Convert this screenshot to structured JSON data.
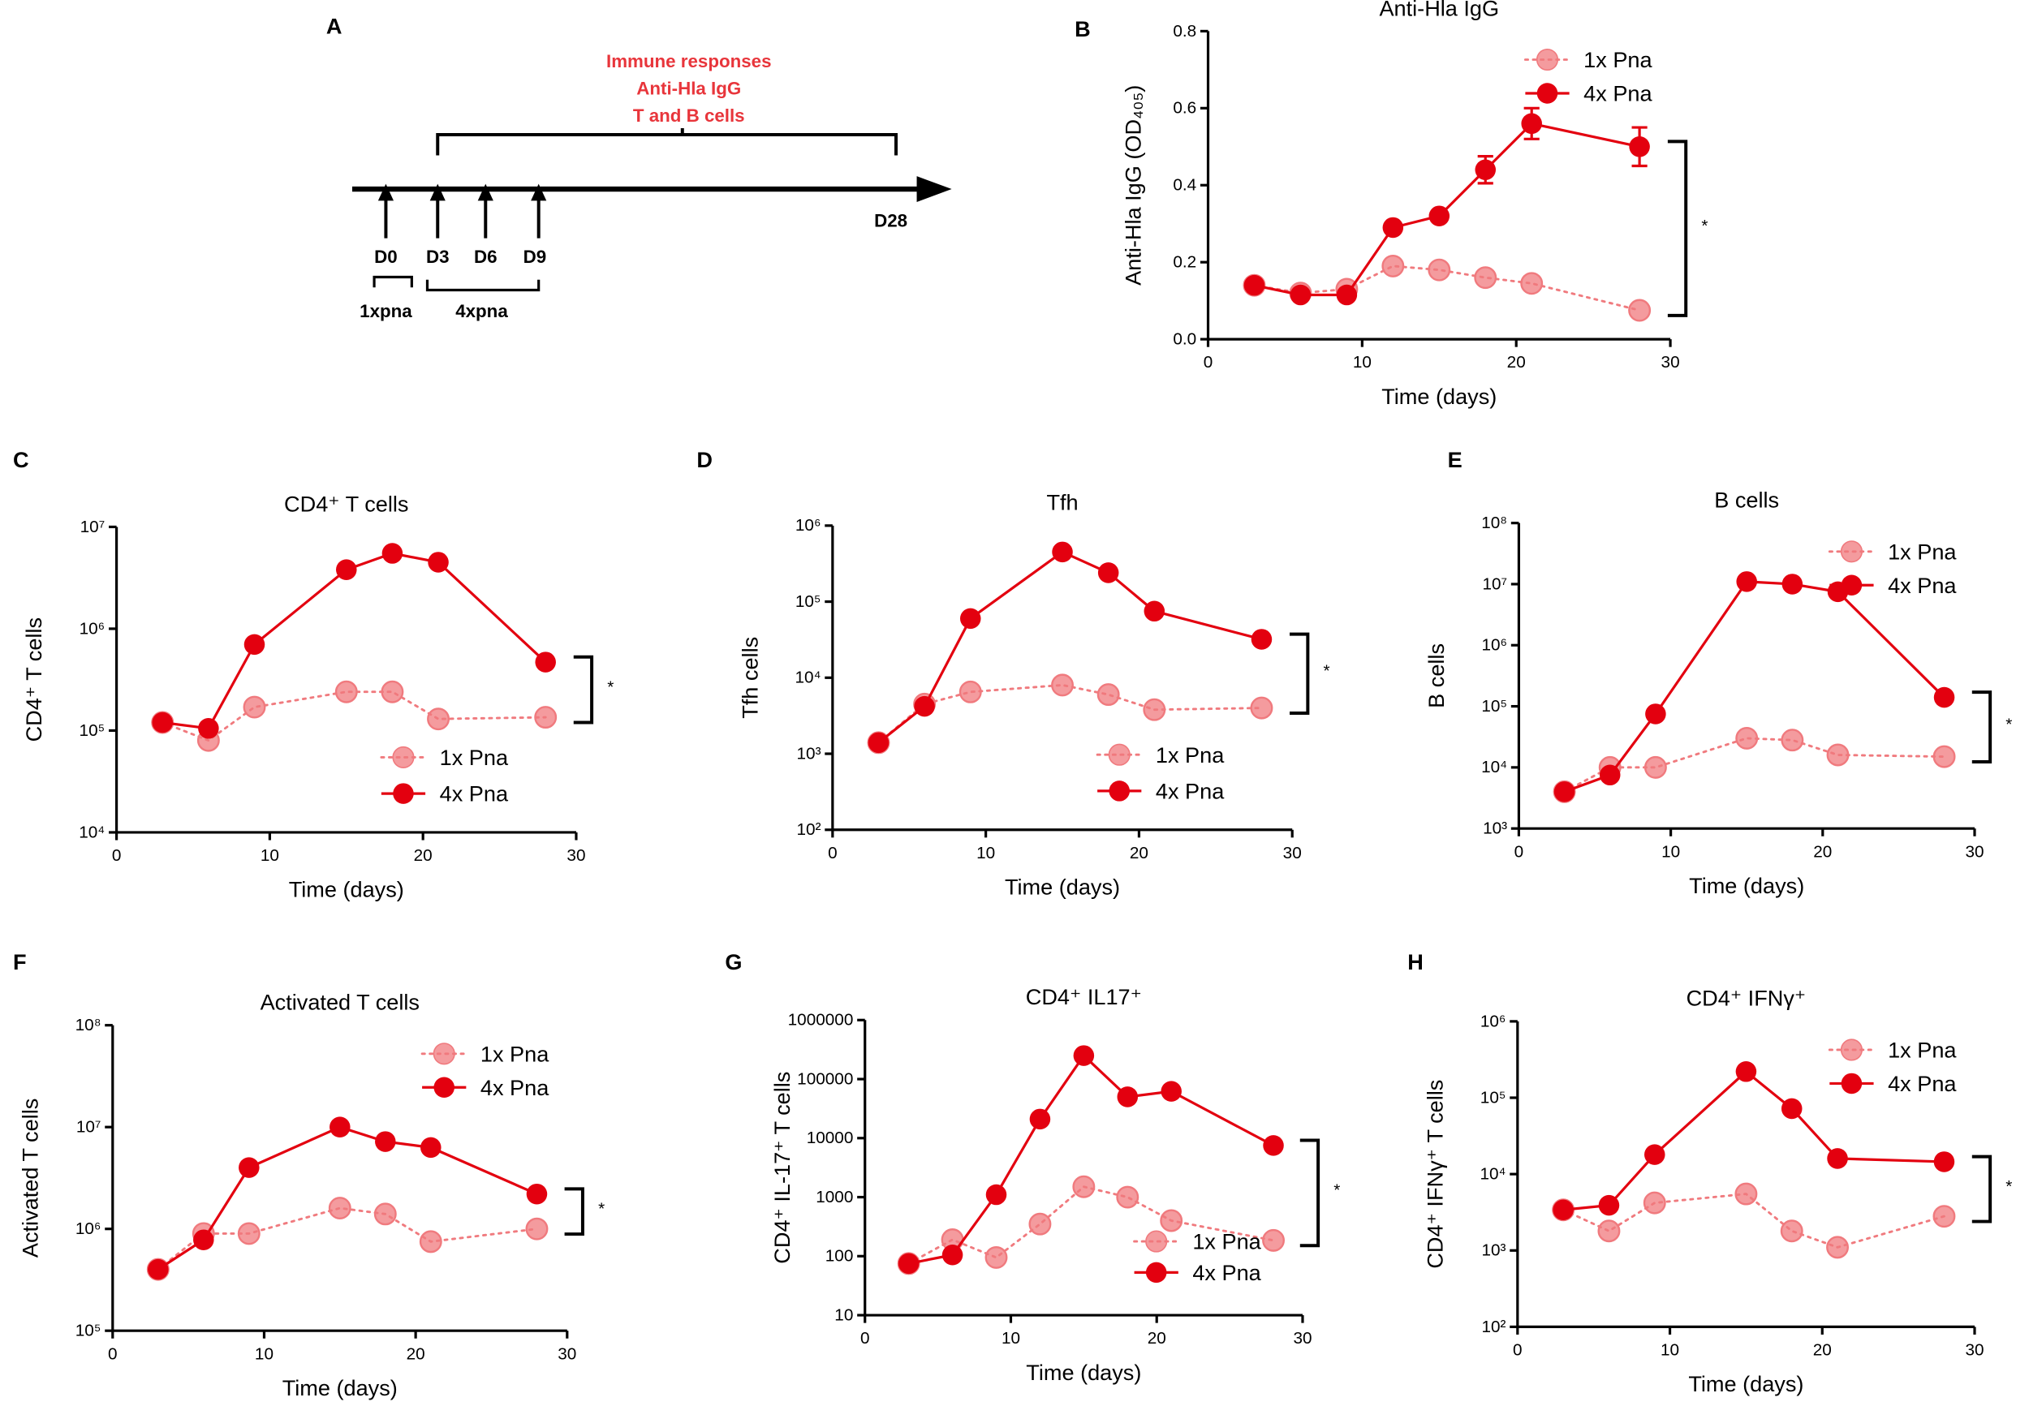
{
  "timeline": {
    "panel_label": "A",
    "header": [
      "Immune responses",
      "Anti-Hla IgG",
      "T and B cells"
    ],
    "days": [
      "D0",
      "D3",
      "D6",
      "D9"
    ],
    "end": "D28",
    "groups": [
      "1xpna",
      "4xpna"
    ]
  },
  "chart_data": [
    {
      "type": "line",
      "panel_label": "B",
      "title": "Anti-Hla IgG",
      "x_label": "Time (days)",
      "y_label": "Anti-Hla IgG (OD₄₀₅)",
      "xlim": [
        0,
        30
      ],
      "xticks": [
        0,
        10,
        20,
        30
      ],
      "ylim": [
        0,
        0.8
      ],
      "yticks": [
        {
          "value": 0,
          "label": "0.0"
        },
        0.2,
        0.4,
        0.6,
        0.8
      ],
      "log_scale": false,
      "legend": "upper right",
      "significance": "*",
      "x": [
        3,
        6,
        9,
        12,
        15,
        18,
        21,
        28
      ],
      "series": [
        {
          "name": "1x Pna",
          "color": "#f07a7e",
          "line_style": "dotted",
          "values": [
            0.14,
            0.12,
            0.13,
            0.19,
            0.18,
            0.16,
            0.145,
            0.075
          ]
        },
        {
          "name": "4x Pna",
          "color": "#e3000f",
          "line_style": "solid",
          "values": [
            0.14,
            0.115,
            0.115,
            0.29,
            0.32,
            0.44,
            0.56,
            0.5
          ],
          "errors": [
            0.005,
            0.005,
            0.005,
            0.01,
            0.01,
            0.035,
            0.04,
            0.05
          ]
        }
      ]
    },
    {
      "type": "line",
      "panel_label": "C",
      "title": "CD4⁺ T cells",
      "x_label": "Time (days)",
      "y_label": "CD4⁺ T cells",
      "xlim": [
        0,
        30
      ],
      "xticks": [
        0,
        10,
        20,
        30
      ],
      "ylim": [
        10000,
        10000000
      ],
      "yticks": [
        {
          "value": 10000,
          "label": "10⁴"
        },
        {
          "value": 100000,
          "label": "10⁵"
        },
        {
          "value": 1000000,
          "label": "10⁶"
        },
        {
          "value": 10000000,
          "label": "10⁷"
        }
      ],
      "log_scale": true,
      "legend": "lower center",
      "significance": "*",
      "x": [
        3,
        6,
        9,
        15,
        18,
        21,
        28
      ],
      "series": [
        {
          "name": "1x Pna",
          "color": "#f07a7e",
          "line_style": "dotted",
          "values": [
            120000,
            80000,
            170000,
            240000,
            240000,
            130000,
            135000
          ]
        },
        {
          "name": "4x Pna",
          "color": "#e3000f",
          "line_style": "solid",
          "values": [
            120000,
            105000,
            700000,
            3800000,
            5500000,
            4500000,
            470000
          ]
        }
      ]
    },
    {
      "type": "line",
      "panel_label": "D",
      "title": "Tfh",
      "x_label": "Time (days)",
      "y_label": "Tfh cells",
      "xlim": [
        0,
        30
      ],
      "xticks": [
        0,
        10,
        20,
        30
      ],
      "ylim": [
        100,
        1000000
      ],
      "yticks": [
        {
          "value": 100,
          "label": "10²"
        },
        {
          "value": 1000,
          "label": "10³"
        },
        {
          "value": 10000,
          "label": "10⁴"
        },
        {
          "value": 100000,
          "label": "10⁵"
        },
        {
          "value": 1000000,
          "label": "10⁶"
        }
      ],
      "log_scale": true,
      "legend": "lower center",
      "significance": "*",
      "x": [
        3,
        6,
        9,
        15,
        18,
        21,
        28
      ],
      "series": [
        {
          "name": "1x Pna",
          "color": "#f07a7e",
          "line_style": "dotted",
          "values": [
            1400,
            4500,
            6500,
            8000,
            6000,
            3800,
            4000
          ]
        },
        {
          "name": "4x Pna",
          "color": "#e3000f",
          "line_style": "solid",
          "values": [
            1400,
            4200,
            60000,
            450000,
            240000,
            75000,
            32000
          ]
        }
      ]
    },
    {
      "type": "line",
      "panel_label": "E",
      "title": "B cells",
      "x_label": "Time (days)",
      "y_label": "B cells",
      "xlim": [
        0,
        30
      ],
      "xticks": [
        0,
        10,
        20,
        30
      ],
      "ylim": [
        1000,
        100000000
      ],
      "yticks": [
        {
          "value": 1000,
          "label": "10³"
        },
        {
          "value": 10000,
          "label": "10⁴"
        },
        {
          "value": 100000,
          "label": "10⁵"
        },
        {
          "value": 1000000,
          "label": "10⁶"
        },
        {
          "value": 10000000,
          "label": "10⁷"
        },
        {
          "value": 100000000,
          "label": "10⁸"
        }
      ],
      "log_scale": true,
      "legend": "upper right",
      "significance": "*",
      "x": [
        3,
        6,
        9,
        15,
        18,
        21,
        28
      ],
      "series": [
        {
          "name": "1x Pna",
          "color": "#f07a7e",
          "line_style": "dotted",
          "values": [
            4000,
            10000,
            10000,
            30000,
            28000,
            16000,
            15000
          ]
        },
        {
          "name": "4x Pna",
          "color": "#e3000f",
          "line_style": "solid",
          "values": [
            4000,
            7500,
            75000,
            11000000,
            10000000,
            7500000,
            140000
          ]
        }
      ]
    },
    {
      "type": "line",
      "panel_label": "F",
      "title": "Activated T cells",
      "x_label": "Time (days)",
      "y_label": "Activated T cells",
      "xlim": [
        0,
        30
      ],
      "xticks": [
        0,
        10,
        20,
        30
      ],
      "ylim": [
        100000,
        100000000
      ],
      "yticks": [
        {
          "value": 100000,
          "label": "10⁵"
        },
        {
          "value": 1000000,
          "label": "10⁶"
        },
        {
          "value": 10000000,
          "label": "10⁷"
        },
        {
          "value": 100000000,
          "label": "10⁸"
        }
      ],
      "log_scale": true,
      "legend": "upper right",
      "significance": "*",
      "x": [
        3,
        6,
        9,
        15,
        18,
        21,
        28
      ],
      "series": [
        {
          "name": "1x Pna",
          "color": "#f07a7e",
          "line_style": "dotted",
          "values": [
            400000,
            900000,
            900000,
            1600000,
            1400000,
            750000,
            1000000
          ]
        },
        {
          "name": "4x Pna",
          "color": "#e3000f",
          "line_style": "solid",
          "values": [
            400000,
            780000,
            4000000,
            10000000,
            7200000,
            6300000,
            2200000
          ]
        }
      ]
    },
    {
      "type": "line",
      "panel_label": "G",
      "title": "CD4⁺ IL17⁺",
      "x_label": "Time (days)",
      "y_label": "CD4⁺ IL-17⁺ T cells",
      "xlim": [
        0,
        30
      ],
      "xticks": [
        0,
        10,
        20,
        30
      ],
      "ylim": [
        10,
        1000000
      ],
      "yticks": [
        10,
        100,
        1000,
        10000,
        100000,
        1000000
      ],
      "log_scale": true,
      "legend": "lower right",
      "significance": "*",
      "x": [
        3,
        6,
        9,
        12,
        15,
        18,
        21,
        28
      ],
      "series": [
        {
          "name": "1x Pna",
          "color": "#f07a7e",
          "line_style": "dotted",
          "values": [
            75,
            190,
            95,
            350,
            1500,
            1000,
            400,
            185
          ]
        },
        {
          "name": "4x Pna",
          "color": "#e3000f",
          "line_style": "solid",
          "values": [
            75,
            105,
            1100,
            21000,
            250000,
            50000,
            62000,
            7500
          ]
        }
      ]
    },
    {
      "type": "line",
      "panel_label": "H",
      "title": "CD4⁺ IFNγ⁺",
      "x_label": "Time (days)",
      "y_label": "CD4⁺ IFNγ⁺ T cells",
      "xlim": [
        0,
        30
      ],
      "xticks": [
        0,
        10,
        20,
        30
      ],
      "ylim": [
        100,
        1000000
      ],
      "yticks": [
        {
          "value": 100,
          "label": "10²"
        },
        {
          "value": 1000,
          "label": "10³"
        },
        {
          "value": 10000,
          "label": "10⁴"
        },
        {
          "value": 100000,
          "label": "10⁵"
        },
        {
          "value": 1000000,
          "label": "10⁶"
        }
      ],
      "log_scale": true,
      "legend": "upper right",
      "significance": "*",
      "x": [
        3,
        6,
        9,
        15,
        18,
        21,
        28
      ],
      "series": [
        {
          "name": "1x Pna",
          "color": "#f07a7e",
          "line_style": "dotted",
          "values": [
            3400,
            1800,
            4200,
            5500,
            1800,
            1100,
            2800
          ]
        },
        {
          "name": "4x Pna",
          "color": "#e3000f",
          "line_style": "solid",
          "values": [
            3400,
            3900,
            18000,
            220000,
            72000,
            16000,
            14500
          ]
        }
      ]
    }
  ]
}
